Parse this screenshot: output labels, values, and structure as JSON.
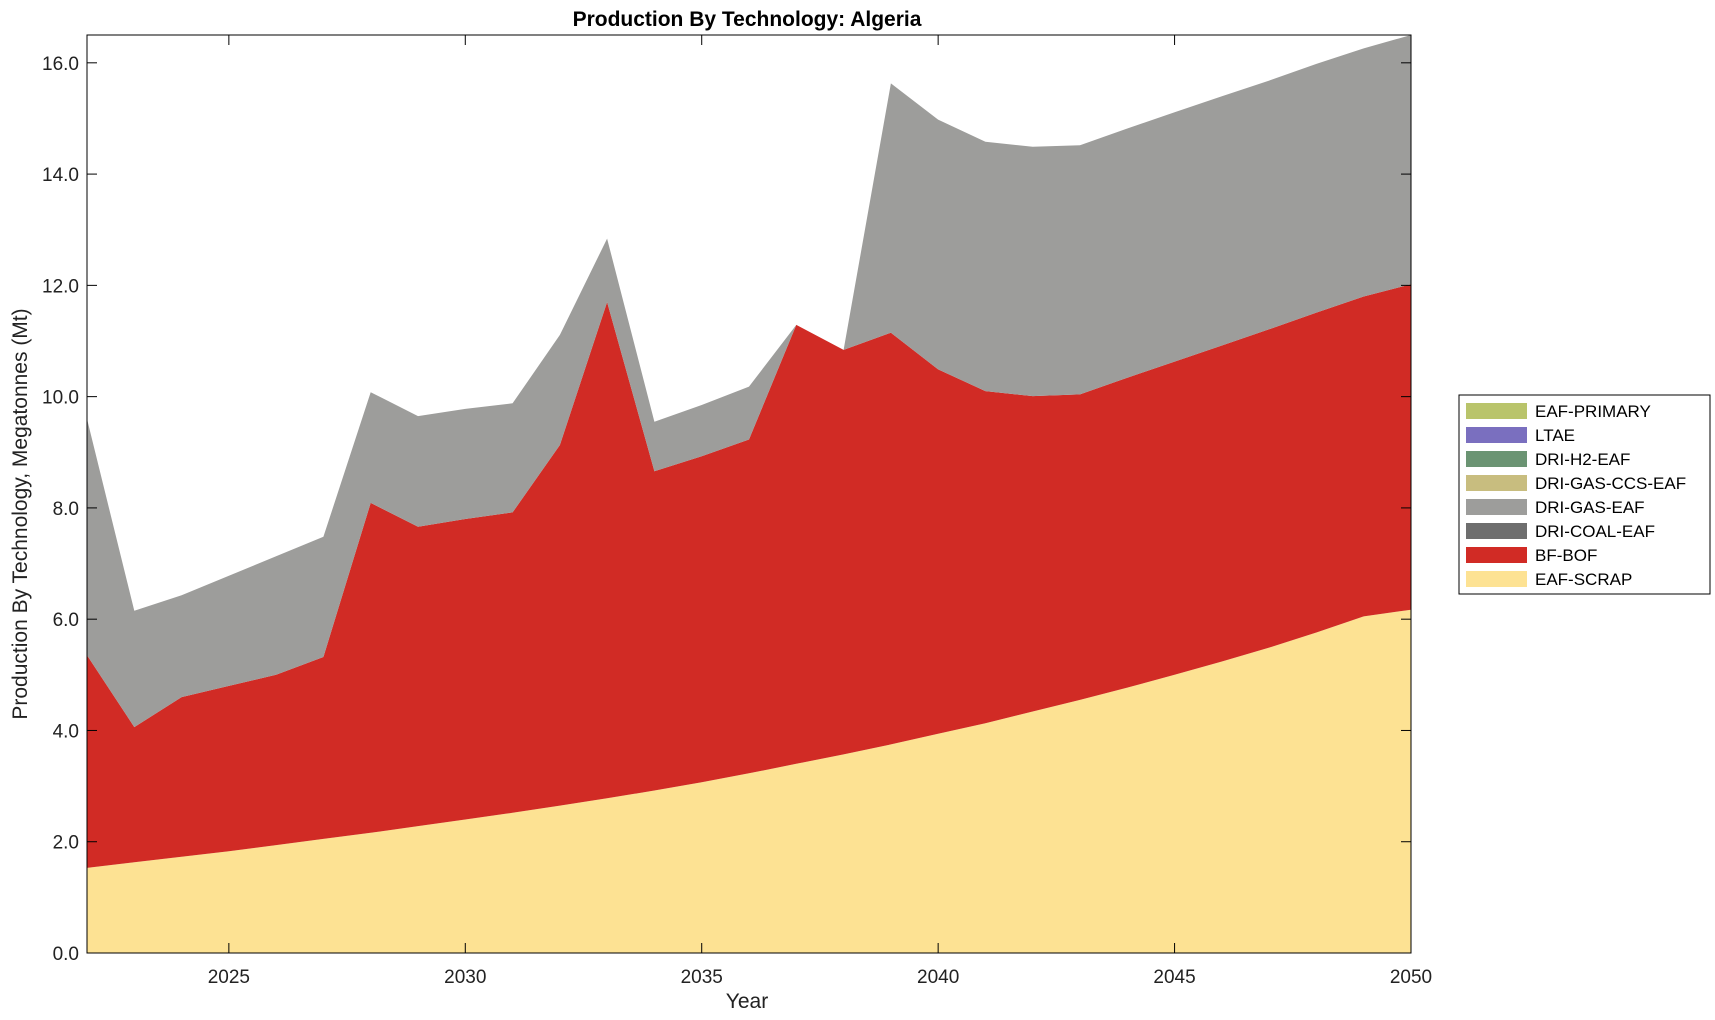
{
  "chart_data": {
    "type": "area",
    "stacked": true,
    "title": "Production By Technology: Algeria",
    "xlabel": "Year",
    "ylabel": "Production By Technology, Megatonnes (Mt)",
    "xlim": [
      2022,
      2050
    ],
    "ylim": [
      0,
      16.5
    ],
    "xticks": [
      2025,
      2030,
      2035,
      2040,
      2045,
      2050
    ],
    "yticks": [
      0,
      2,
      4,
      6,
      8,
      10,
      12,
      14,
      16
    ],
    "ytick_labels": [
      "0.0",
      "2.0",
      "4.0",
      "6.0",
      "8.0",
      "10.0",
      "12.0",
      "14.0",
      "16.0"
    ],
    "grid": false,
    "legend_position": "right",
    "x": [
      2022,
      2023,
      2024,
      2025,
      2026,
      2027,
      2028,
      2029,
      2030,
      2031,
      2032,
      2033,
      2034,
      2035,
      2036,
      2037,
      2038,
      2039,
      2040,
      2041,
      2042,
      2043,
      2044,
      2045,
      2046,
      2047,
      2048,
      2049,
      2050
    ],
    "series": [
      {
        "name": "EAF-SCRAP",
        "color": "#fde293",
        "values": [
          1.53,
          1.63,
          1.73,
          1.83,
          1.94,
          2.05,
          2.16,
          2.28,
          2.4,
          2.52,
          2.65,
          2.78,
          2.92,
          3.07,
          3.23,
          3.4,
          3.57,
          3.75,
          3.94,
          4.13,
          4.34,
          4.55,
          4.77,
          5.0,
          5.24,
          5.49,
          5.76,
          6.05,
          6.17
        ]
      },
      {
        "name": "BF-BOF",
        "color": "#d12b25",
        "values": [
          3.82,
          2.43,
          2.87,
          2.97,
          3.06,
          3.27,
          5.93,
          5.38,
          5.4,
          5.4,
          6.48,
          8.92,
          5.74,
          5.86,
          6.0,
          7.89,
          7.27,
          7.4,
          6.55,
          5.97,
          5.67,
          5.49,
          5.57,
          5.63,
          5.68,
          5.72,
          5.75,
          5.75,
          5.85
        ]
      },
      {
        "name": "DRI-COAL-EAF",
        "color": "#6e6e6e",
        "values": [
          0,
          0,
          0,
          0,
          0,
          0,
          0,
          0,
          0,
          0,
          0,
          0,
          0,
          0,
          0,
          0,
          0,
          0,
          0,
          0,
          0,
          0,
          0,
          0,
          0,
          0,
          0,
          0,
          0
        ]
      },
      {
        "name": "DRI-GAS-EAF",
        "color": "#9d9d9b",
        "values": [
          4.25,
          2.09,
          1.83,
          1.98,
          2.13,
          2.16,
          1.99,
          1.99,
          1.98,
          1.96,
          1.98,
          1.14,
          0.89,
          0.92,
          0.95,
          0.0,
          0.0,
          4.48,
          4.49,
          4.48,
          4.48,
          4.48,
          4.48,
          4.48,
          4.48,
          4.47,
          4.47,
          4.46,
          4.48
        ]
      },
      {
        "name": "DRI-GAS-CCS-EAF",
        "color": "#c8bd7f",
        "values": [
          0,
          0,
          0,
          0,
          0,
          0,
          0,
          0,
          0,
          0,
          0,
          0,
          0,
          0,
          0,
          0,
          0,
          0,
          0,
          0,
          0,
          0,
          0,
          0,
          0,
          0,
          0,
          0,
          0
        ]
      },
      {
        "name": "DRI-H2-EAF",
        "color": "#6b9473",
        "values": [
          0,
          0,
          0,
          0,
          0,
          0,
          0,
          0,
          0,
          0,
          0,
          0,
          0,
          0,
          0,
          0,
          0,
          0,
          0,
          0,
          0,
          0,
          0,
          0,
          0,
          0,
          0,
          0,
          0
        ]
      },
      {
        "name": "LTAE",
        "color": "#7a6fbf",
        "values": [
          0,
          0,
          0,
          0,
          0,
          0,
          0,
          0,
          0,
          0,
          0,
          0,
          0,
          0,
          0,
          0,
          0,
          0,
          0,
          0,
          0,
          0,
          0,
          0,
          0,
          0,
          0,
          0,
          0
        ]
      },
      {
        "name": "EAF-PRIMARY",
        "color": "#b9c46b",
        "values": [
          0,
          0,
          0,
          0,
          0,
          0,
          0,
          0,
          0,
          0,
          0,
          0,
          0,
          0,
          0,
          0,
          0,
          0,
          0,
          0,
          0,
          0,
          0,
          0,
          0,
          0,
          0,
          0,
          0
        ]
      }
    ],
    "legend_order": [
      "EAF-PRIMARY",
      "LTAE",
      "DRI-H2-EAF",
      "DRI-GAS-CCS-EAF",
      "DRI-GAS-EAF",
      "DRI-COAL-EAF",
      "BF-BOF",
      "EAF-SCRAP"
    ]
  }
}
